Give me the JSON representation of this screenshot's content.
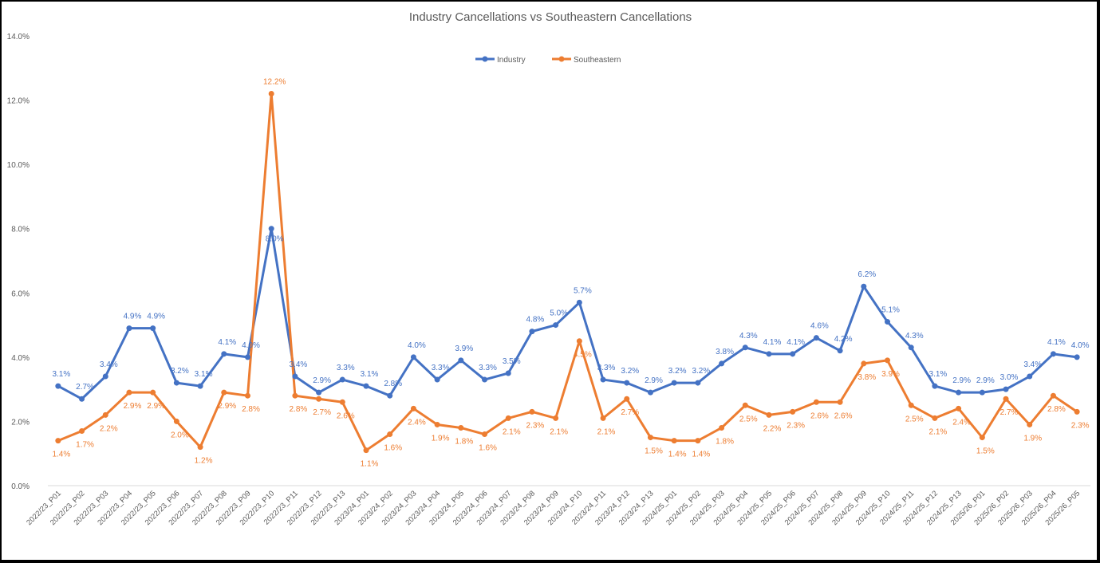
{
  "chart_data": {
    "type": "line",
    "title": "Industry Cancellations vs Southeastern Cancellations",
    "xlabel": "",
    "ylabel": "",
    "ylim": [
      0,
      14
    ],
    "yticks": [
      "0.0%",
      "2.0%",
      "4.0%",
      "6.0%",
      "8.0%",
      "10.0%",
      "12.0%",
      "14.0%"
    ],
    "ytick_values": [
      0,
      2,
      4,
      6,
      8,
      10,
      12,
      14
    ],
    "grid": false,
    "legend_position": "top-center",
    "categories": [
      "2022/23_P01",
      "2022/23_P02",
      "2022/23_P03",
      "2022/23_P04",
      "2022/23_P05",
      "2022/23_P06",
      "2022/23_P07",
      "2022/23_P08",
      "2022/23_P09",
      "2022/23_P10",
      "2022/23_P11",
      "2022/23_P12",
      "2022/23_P13",
      "2023/24_P01",
      "2023/24_P02",
      "2023/24_P03",
      "2023/24_P04",
      "2023/24_P05",
      "2023/24_P06",
      "2023/24_P07",
      "2023/24_P08",
      "2023/24_P09",
      "2023/24_P10",
      "2023/24_P11",
      "2023/24_P12",
      "2023/24_P13",
      "2024/25_P01",
      "2024/25_P02",
      "2024/25_P03",
      "2024/25_P04",
      "2024/25_P05",
      "2024/25_P06",
      "2024/25_P07",
      "2024/25_P08",
      "2024/25_P09",
      "2024/25_P10",
      "2024/25_P11",
      "2024/25_P12",
      "2024/25_P13",
      "2025/26_P01",
      "2025/26_P02",
      "2025/26_P03",
      "2025/26_P04",
      "2025/26_P05"
    ],
    "series": [
      {
        "name": "Industry",
        "color": "#4472C4",
        "values": [
          3.1,
          2.7,
          3.4,
          4.9,
          4.9,
          3.2,
          3.1,
          4.1,
          4.0,
          8.0,
          3.4,
          2.9,
          3.3,
          3.1,
          2.8,
          4.0,
          3.3,
          3.9,
          3.3,
          3.5,
          4.8,
          5.0,
          5.7,
          3.3,
          3.2,
          2.9,
          3.2,
          3.2,
          3.8,
          4.3,
          4.1,
          4.1,
          4.6,
          4.2,
          6.2,
          5.1,
          4.3,
          3.1,
          2.9,
          2.9,
          3.0,
          3.4,
          4.1,
          4.0
        ]
      },
      {
        "name": "Southeastern",
        "color": "#ED7D31",
        "values": [
          1.4,
          1.7,
          2.2,
          2.9,
          2.9,
          2.0,
          1.2,
          2.9,
          2.8,
          12.2,
          2.8,
          2.7,
          2.6,
          1.1,
          1.6,
          2.4,
          1.9,
          1.8,
          1.6,
          2.1,
          2.3,
          2.1,
          4.5,
          2.1,
          2.7,
          1.5,
          1.4,
          1.4,
          1.8,
          2.5,
          2.2,
          2.3,
          2.6,
          2.6,
          3.8,
          3.9,
          2.5,
          2.1,
          2.4,
          1.5,
          2.7,
          1.9,
          2.8,
          2.3
        ]
      }
    ],
    "label_format": "%"
  }
}
